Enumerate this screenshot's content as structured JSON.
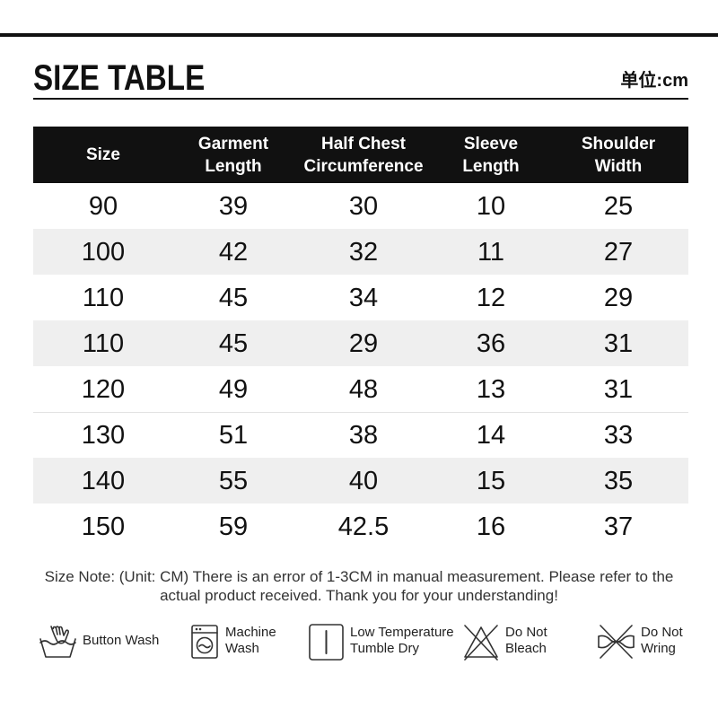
{
  "title": "SIZE TABLE",
  "unit_label": "单位:cm",
  "table": {
    "headers": [
      [
        "Size"
      ],
      [
        "Garment",
        "Length"
      ],
      [
        "Half Chest",
        "Circumference"
      ],
      [
        "Sleeve",
        "Length"
      ],
      [
        "Shoulder",
        "Width"
      ]
    ],
    "rows": [
      [
        "90",
        "39",
        "30",
        "10",
        "25"
      ],
      [
        "100",
        "42",
        "32",
        "11",
        "27"
      ],
      [
        "110",
        "45",
        "34",
        "12",
        "29"
      ],
      [
        "110",
        "45",
        "29",
        "36",
        "31"
      ],
      [
        "120",
        "49",
        "48",
        "13",
        "31"
      ],
      [
        "130",
        "51",
        "38",
        "14",
        "33"
      ],
      [
        "140",
        "55",
        "40",
        "15",
        "35"
      ],
      [
        "150",
        "59",
        "42.5",
        "16",
        "37"
      ]
    ]
  },
  "size_note": {
    "line1": "Size Note: (Unit: CM) There is an error of 1-3CM in manual measurement. Please refer to the",
    "line2": "actual product received. Thank you for your understanding!"
  },
  "care_instructions": [
    {
      "icon": "hand-wash-icon",
      "lines": [
        "Button Wash"
      ]
    },
    {
      "icon": "machine-wash-icon",
      "lines": [
        "Machine",
        "Wash"
      ]
    },
    {
      "icon": "tumble-dry-icon",
      "lines": [
        "Low Temperature",
        "Tumble Dry"
      ]
    },
    {
      "icon": "do-not-bleach-icon",
      "lines": [
        "Do Not",
        "Bleach"
      ]
    },
    {
      "icon": "do-not-wring-icon",
      "lines": [
        "Do Not",
        "Wring"
      ]
    }
  ],
  "colors": {
    "header_bg": "#111111",
    "header_text": "#ffffff",
    "stripe_bg": "#efefef",
    "rule": "#111111",
    "text": "#111111",
    "note_text": "#333333"
  }
}
